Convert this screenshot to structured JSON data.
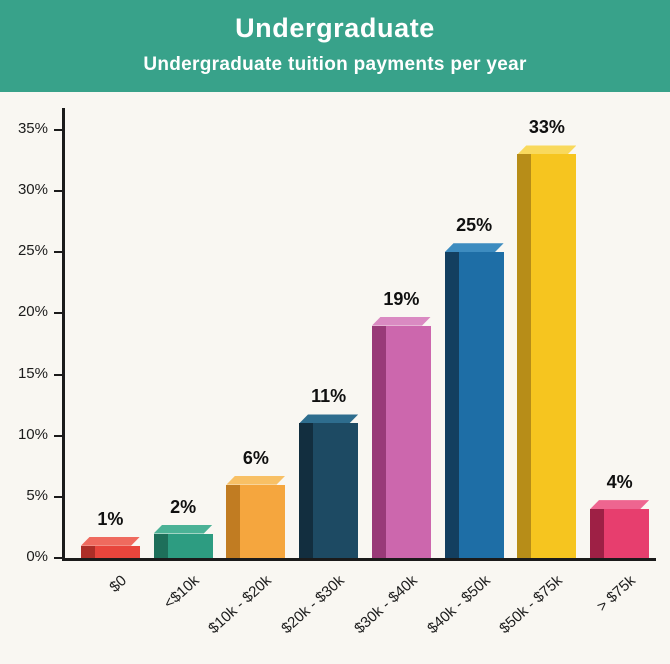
{
  "header": {
    "title": "Undergraduate",
    "subtitle": "Undergraduate tuition payments per year",
    "bg_color": "#38a28a",
    "text_color": "#ffffff"
  },
  "chart_style": {
    "bg_color": "#f9f7f2",
    "axis_color": "#1b1b1b",
    "tick_label_color": "#1c1c1c",
    "value_label_color": "#101010"
  },
  "chart_data": {
    "type": "bar",
    "title": "Undergraduate",
    "subtitle": "Undergraduate tuition payments per year",
    "categories": [
      "$0",
      "<$10k",
      "$10k - $20k",
      "$20k - $30k",
      "$30k - $40k",
      "$40k - $50k",
      "$50k - $75k",
      "> $75k"
    ],
    "values": [
      1,
      2,
      6,
      11,
      19,
      25,
      33,
      4
    ],
    "value_labels": [
      "1%",
      "2%",
      "6%",
      "11%",
      "19%",
      "25%",
      "33%",
      "4%"
    ],
    "xlabel": "",
    "ylabel": "",
    "ylim": [
      0,
      35
    ],
    "ytick_interval": 5,
    "ytick_labels": [
      "0%",
      "5%",
      "10%",
      "15%",
      "20%",
      "25%",
      "30%",
      "35%"
    ],
    "grid": false,
    "legend": "none",
    "bar_style": "3d-extruded",
    "bar_colors": [
      {
        "front": "#e8453c",
        "side": "#ad2e27",
        "top": "#ef6a5e"
      },
      {
        "front": "#2d9c81",
        "side": "#1e6f5a",
        "top": "#4bb296"
      },
      {
        "front": "#f5a63e",
        "side": "#c17c22",
        "top": "#f8c065"
      },
      {
        "front": "#1d4a63",
        "side": "#122e3f",
        "top": "#2e6d8e"
      },
      {
        "front": "#cc67ad",
        "side": "#993a78",
        "top": "#da8ac2"
      },
      {
        "front": "#1e6ea6",
        "side": "#133f60",
        "top": "#3d8cc0"
      },
      {
        "front": "#f6c51f",
        "side": "#b78d18",
        "top": "#f9d95c"
      },
      {
        "front": "#e73e6e",
        "side": "#9e2045",
        "top": "#ee6590"
      }
    ]
  }
}
